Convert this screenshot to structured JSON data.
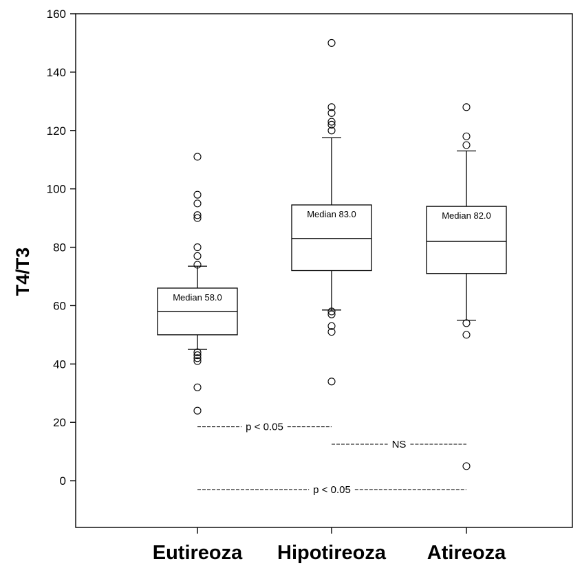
{
  "chart_data": {
    "type": "box",
    "ylabel": "T4/T3",
    "ylim": [
      -16,
      160
    ],
    "yticks": [
      0,
      20,
      40,
      60,
      80,
      100,
      120,
      140,
      160
    ],
    "grid": false,
    "categories": [
      "Eutireoza",
      "Hipotireoza",
      "Atireoza"
    ],
    "boxes": [
      {
        "category": "Eutireoza",
        "whisker_low": 45,
        "q1": 50,
        "median": 58,
        "q3": 66,
        "whisker_high": 73.5,
        "median_label": "Median 58.0",
        "outliers": [
          24,
          32,
          41,
          42,
          43,
          44,
          74,
          77,
          80,
          90,
          91,
          95,
          98,
          111
        ]
      },
      {
        "category": "Hipotireoza",
        "whisker_low": 58.5,
        "q1": 72,
        "median": 83,
        "q3": 94.5,
        "whisker_high": 117.5,
        "median_label": "Median 83.0",
        "outliers": [
          34,
          51,
          53,
          57,
          58,
          120,
          122,
          123,
          126,
          128,
          150
        ]
      },
      {
        "category": "Atireoza",
        "whisker_low": 55,
        "q1": 71,
        "median": 82,
        "q3": 94,
        "whisker_high": 113,
        "median_label": "Median 82.0",
        "outliers": [
          5,
          50,
          54,
          115,
          118,
          128
        ]
      }
    ],
    "comparisons": [
      {
        "from": "Eutireoza",
        "to": "Hipotireoza",
        "y": 18.5,
        "label": "p < 0.05"
      },
      {
        "from": "Hipotireoza",
        "to": "Atireoza",
        "y": 12.5,
        "label": "NS"
      },
      {
        "from": "Eutireoza",
        "to": "Atireoza",
        "y": -3,
        "label": "p < 0.05"
      }
    ]
  }
}
